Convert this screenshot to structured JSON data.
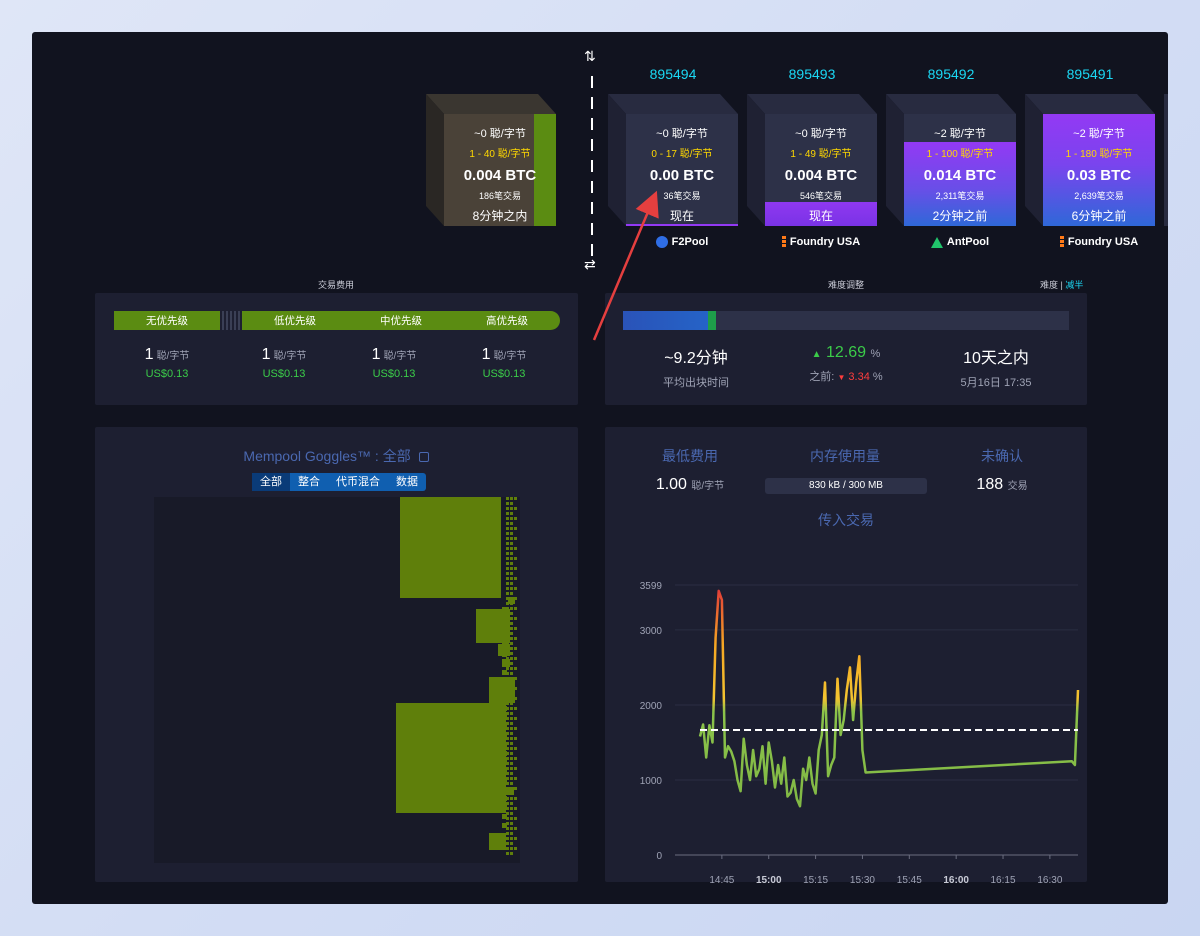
{
  "mempool_blocks": [
    {
      "fee": "~0 聪/字节",
      "range": "1 - 40 聪/字节",
      "amount": "0.004 BTC",
      "txs": "186笔交易",
      "time": "8分钟之内"
    }
  ],
  "blocks": [
    {
      "height": "895494",
      "fee": "~0 聪/字节",
      "range": "0 - 17 聪/字节",
      "amount": "0.00 BTC",
      "txs": "36笔交易",
      "time": "现在",
      "pool": "F2Pool",
      "pool_icon": "f2pool-icon"
    },
    {
      "height": "895493",
      "fee": "~0 聪/字节",
      "range": "1 - 49 聪/字节",
      "amount": "0.004 BTC",
      "txs": "546笔交易",
      "time": "现在",
      "pool": "Foundry USA",
      "pool_icon": "foundry-icon"
    },
    {
      "height": "895492",
      "fee": "~2 聪/字节",
      "range": "1 - 100 聪/字节",
      "amount": "0.014 BTC",
      "txs": "2,311笔交易",
      "time": "2分钟之前",
      "pool": "AntPool",
      "pool_icon": "antpool-icon"
    },
    {
      "height": "895491",
      "fee": "~2 聪/字节",
      "range": "1 - 180 聪/字节",
      "amount": "0.03 BTC",
      "txs": "2,639笔交易",
      "time": "6分钟之前",
      "pool": "Foundry USA",
      "pool_icon": "foundry-icon"
    }
  ],
  "fees": {
    "title": "交易费用",
    "priorities": [
      "无优先级",
      "低优先级",
      "中优先级",
      "高优先级"
    ],
    "values": [
      {
        "value": "1",
        "unit": "聪/字节",
        "usd": "US$0.13"
      },
      {
        "value": "1",
        "unit": "聪/字节",
        "usd": "US$0.13"
      },
      {
        "value": "1",
        "unit": "聪/字节",
        "usd": "US$0.13"
      },
      {
        "value": "1",
        "unit": "聪/字节",
        "usd": "US$0.13"
      }
    ]
  },
  "difficulty": {
    "title": "难度调整",
    "toggle_label": "难度",
    "toggle_value": "减半",
    "progress": 0.19,
    "avg_block_time": "~9.2分钟",
    "avg_block_time_label": "平均出块时间",
    "change": "12.69",
    "change_unit": "%",
    "previous_label": "之前:",
    "previous": "3.34",
    "previous_unit": "%",
    "eta": "10天之内",
    "eta_date": "5月16日 17:35"
  },
  "goggles": {
    "title": "Mempool Goggles™ : 全部",
    "tabs": [
      "全部",
      "整合",
      "代币混合",
      "数据"
    ]
  },
  "stats": {
    "min_fee_label": "最低费用",
    "min_fee_value": "1.00",
    "min_fee_unit": "聪/字节",
    "memory_label": "内存使用量",
    "memory_value": "830 kB / 300 MB",
    "unconfirmed_label": "未确认",
    "unconfirmed_value": "188",
    "unconfirmed_unit": "交易",
    "incoming_label": "传入交易"
  },
  "colors": {
    "accent": "#1bd8f4",
    "green": "#3bcc49",
    "red": "#ff3d3d",
    "priority_green": "#5b8c12"
  },
  "chart_data": {
    "type": "line",
    "title": "传入交易",
    "y_ticks": [
      "0",
      "1000",
      "2000",
      "3000",
      "3599"
    ],
    "x_ticks": [
      "14:45",
      "15:00",
      "15:15",
      "15:30",
      "15:45",
      "16:00",
      "16:15",
      "16:30"
    ],
    "ylim": [
      0,
      3599
    ],
    "reference_line": 1667,
    "series": [
      {
        "values": [
          [
            "14:38",
            1580
          ],
          [
            "14:39",
            1740
          ],
          [
            "14:40",
            1300
          ],
          [
            "14:41",
            1730
          ],
          [
            "14:42",
            1500
          ],
          [
            "14:43",
            2900
          ],
          [
            "14:44",
            3520
          ],
          [
            "14:45",
            3400
          ],
          [
            "14:46",
            1300
          ],
          [
            "14:47",
            1450
          ],
          [
            "14:48",
            1380
          ],
          [
            "14:49",
            1250
          ],
          [
            "14:50",
            1000
          ],
          [
            "14:51",
            850
          ],
          [
            "14:52",
            1550
          ],
          [
            "14:53",
            1200
          ],
          [
            "14:54",
            1000
          ],
          [
            "14:55",
            1400
          ],
          [
            "14:56",
            1050
          ],
          [
            "14:57",
            1150
          ],
          [
            "14:58",
            1450
          ],
          [
            "14:59",
            950
          ],
          [
            "15:00",
            1500
          ],
          [
            "15:01",
            1250
          ],
          [
            "15:02",
            900
          ],
          [
            "15:03",
            1200
          ],
          [
            "15:04",
            950
          ],
          [
            "15:05",
            1300
          ],
          [
            "15:06",
            780
          ],
          [
            "15:07",
            830
          ],
          [
            "15:08",
            1000
          ],
          [
            "15:09",
            750
          ],
          [
            "15:10",
            650
          ],
          [
            "15:11",
            1150
          ],
          [
            "15:12",
            1000
          ],
          [
            "15:13",
            1300
          ],
          [
            "15:14",
            950
          ],
          [
            "15:15",
            820
          ],
          [
            "15:16",
            1400
          ],
          [
            "15:17",
            1600
          ],
          [
            "15:18",
            2300
          ],
          [
            "15:19",
            1050
          ],
          [
            "15:20",
            1200
          ],
          [
            "15:21",
            1300
          ],
          [
            "15:22",
            2350
          ],
          [
            "15:23",
            1600
          ],
          [
            "15:24",
            1800
          ],
          [
            "15:25",
            2200
          ],
          [
            "15:26",
            2500
          ],
          [
            "15:27",
            1800
          ],
          [
            "15:28",
            2300
          ],
          [
            "15:29",
            2650
          ],
          [
            "15:30",
            1400
          ],
          [
            "15:31",
            1100
          ],
          [
            "16:37",
            1250
          ],
          [
            "16:38",
            1200
          ],
          [
            "16:39",
            2200
          ]
        ]
      }
    ]
  }
}
